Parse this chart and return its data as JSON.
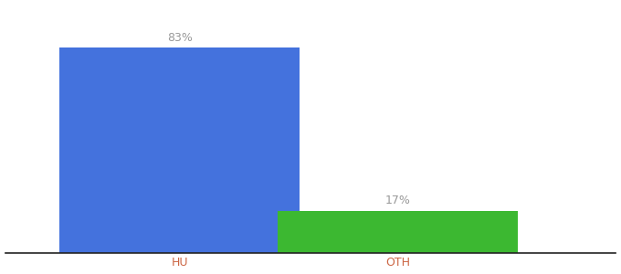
{
  "categories": [
    "HU",
    "OTH"
  ],
  "values": [
    83,
    17
  ],
  "bar_colors": [
    "#4472DD",
    "#3CB831"
  ],
  "labels": [
    "83%",
    "17%"
  ],
  "ylim": [
    0,
    100
  ],
  "background_color": "#ffffff",
  "bar_width": 0.55,
  "label_fontsize": 9,
  "tick_fontsize": 9,
  "tick_color": "#cc6644",
  "label_color": "#999999",
  "spine_color": "#222222"
}
